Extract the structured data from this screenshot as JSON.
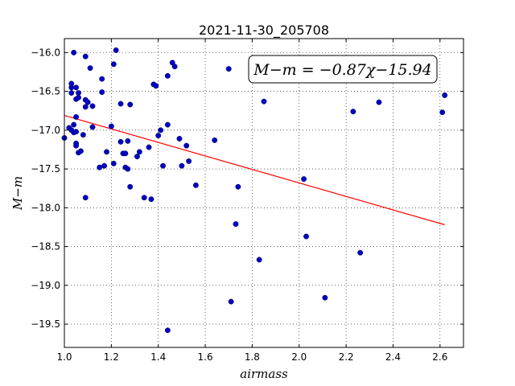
{
  "chart_data": {
    "type": "scatter",
    "title": "2021-11-30_205708",
    "xlabel": "airmass",
    "ylabel": "M−m",
    "xlim": [
      1.0,
      2.7
    ],
    "ylim": [
      -15.82,
      -19.8
    ],
    "x_ticks": [
      "1.0",
      "1.2",
      "1.4",
      "1.6",
      "1.8",
      "2.0",
      "2.2",
      "2.4",
      "2.6"
    ],
    "y_ticks": [
      "−16.0",
      "−16.5",
      "−17.0",
      "−17.5",
      "−18.0",
      "−18.5",
      "−19.0",
      "−19.5"
    ],
    "x_tick_values": [
      1.0,
      1.2,
      1.4,
      1.6,
      1.8,
      2.0,
      2.2,
      2.4,
      2.6
    ],
    "y_tick_values": [
      -16.0,
      -16.5,
      -17.0,
      -17.5,
      -18.0,
      -18.5,
      -19.0,
      -19.5
    ],
    "grid": true,
    "annotation": "M−m = −0.87χ−15.94",
    "annotation_placement": "top-right",
    "fit_line": {
      "slope": -0.87,
      "intercept": -15.94,
      "x_range": [
        1.0,
        2.62
      ],
      "color": "#ff0000"
    },
    "marker_color": "#0000bf",
    "x": [
      1.0,
      1.02,
      1.03,
      1.03,
      1.03,
      1.03,
      1.04,
      1.04,
      1.04,
      1.05,
      1.05,
      1.05,
      1.05,
      1.05,
      1.05,
      1.06,
      1.06,
      1.06,
      1.07,
      1.08,
      1.09,
      1.09,
      1.09,
      1.09,
      1.1,
      1.11,
      1.12,
      1.12,
      1.15,
      1.16,
      1.16,
      1.17,
      1.18,
      1.2,
      1.21,
      1.21,
      1.22,
      1.24,
      1.24,
      1.25,
      1.26,
      1.26,
      1.27,
      1.27,
      1.28,
      1.28,
      1.31,
      1.32,
      1.34,
      1.36,
      1.37,
      1.38,
      1.39,
      1.4,
      1.41,
      1.42,
      1.44,
      1.44,
      1.44,
      1.46,
      1.47,
      1.49,
      1.5,
      1.52,
      1.53,
      1.56,
      1.64,
      1.7,
      1.71,
      1.73,
      1.74,
      1.83,
      1.85,
      2.02,
      2.03,
      2.11,
      2.23,
      2.26,
      2.34,
      2.61,
      2.62
    ],
    "y": [
      -17.1,
      -16.97,
      -17.0,
      -16.52,
      -16.45,
      -16.4,
      -16.93,
      -17.03,
      -16.0,
      -16.6,
      -16.45,
      -16.83,
      -17.17,
      -17.2,
      -17.02,
      -16.58,
      -17.29,
      -16.52,
      -17.27,
      -17.06,
      -16.61,
      -16.7,
      -16.05,
      -17.87,
      -16.64,
      -16.2,
      -16.96,
      -16.69,
      -17.48,
      -16.51,
      -16.34,
      -17.46,
      -17.28,
      -16.95,
      -16.15,
      -17.43,
      -15.97,
      -17.15,
      -16.66,
      -17.3,
      -17.3,
      -17.48,
      -17.14,
      -17.5,
      -16.67,
      -17.73,
      -17.34,
      -17.28,
      -17.87,
      -17.22,
      -17.89,
      -16.41,
      -16.43,
      -17.07,
      -17.0,
      -17.46,
      -16.3,
      -16.93,
      -19.58,
      -16.13,
      -16.18,
      -17.11,
      -17.46,
      -17.2,
      -17.4,
      -17.71,
      -17.13,
      -16.21,
      -19.21,
      -18.21,
      -17.73,
      -18.67,
      -16.63,
      -17.63,
      -18.37,
      -19.16,
      -16.76,
      -18.58,
      -16.64,
      -16.77,
      -16.55
    ]
  }
}
